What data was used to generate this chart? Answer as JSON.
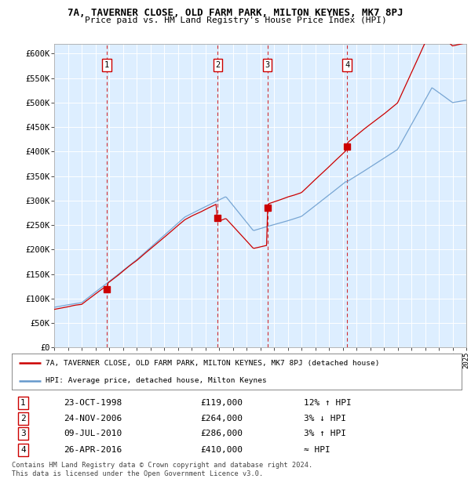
{
  "title": "7A, TAVERNER CLOSE, OLD FARM PARK, MILTON KEYNES, MK7 8PJ",
  "subtitle": "Price paid vs. HM Land Registry's House Price Index (HPI)",
  "background_color": "#ffffff",
  "plot_bg_color": "#ddeeff",
  "grid_color": "#ffffff",
  "ylim": [
    0,
    620000
  ],
  "yticks": [
    0,
    50000,
    100000,
    150000,
    200000,
    250000,
    300000,
    350000,
    400000,
    450000,
    500000,
    550000,
    600000
  ],
  "sale_points": [
    {
      "label": "1",
      "date": "23-OCT-1998",
      "price": 119000,
      "note": "12% ↑ HPI",
      "x_year": 1998.82
    },
    {
      "label": "2",
      "date": "24-NOV-2006",
      "price": 264000,
      "note": "3% ↓ HPI",
      "x_year": 2006.9
    },
    {
      "label": "3",
      "date": "09-JUL-2010",
      "price": 286000,
      "note": "3% ↑ HPI",
      "x_year": 2010.52
    },
    {
      "label": "4",
      "date": "26-APR-2016",
      "price": 410000,
      "note": "≈ HPI",
      "x_year": 2016.32
    }
  ],
  "legend_red_label": "7A, TAVERNER CLOSE, OLD FARM PARK, MILTON KEYNES, MK7 8PJ (detached house)",
  "legend_blue_label": "HPI: Average price, detached house, Milton Keynes",
  "footer": [
    "Contains HM Land Registry data © Crown copyright and database right 2024.",
    "This data is licensed under the Open Government Licence v3.0."
  ],
  "xmin": 1995,
  "xmax": 2025,
  "red_color": "#cc0000",
  "blue_color": "#6699cc"
}
